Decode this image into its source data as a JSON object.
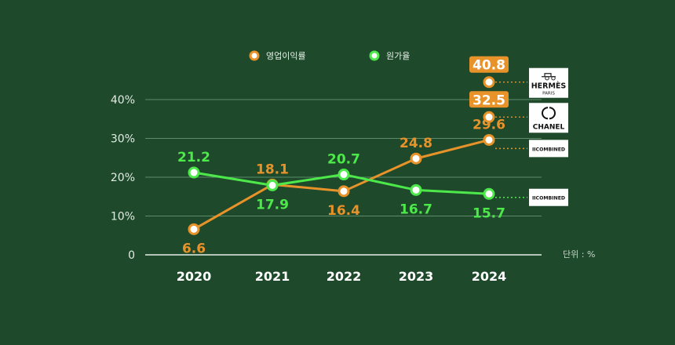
{
  "chart_data": {
    "type": "line",
    "categories": [
      "2020",
      "2021",
      "2022",
      "2023",
      "2024"
    ],
    "series": [
      {
        "name": "영업이익률",
        "color": "#e8922a",
        "values": [
          6.6,
          18.1,
          16.4,
          24.8,
          29.6
        ]
      },
      {
        "name": "원가율",
        "color": "#4de84a",
        "values": [
          21.2,
          17.9,
          20.7,
          16.7,
          15.7
        ]
      }
    ],
    "ylim": [
      0,
      50
    ],
    "yticks": [
      {
        "value": 0,
        "label": "0"
      },
      {
        "value": 10,
        "label": "10%"
      },
      {
        "value": 20,
        "label": "20%"
      },
      {
        "value": 30,
        "label": "30%"
      },
      {
        "value": 40,
        "label": "40%"
      }
    ],
    "unit_note": "단위 : %",
    "legend_position": "top-center",
    "grid": true,
    "comparisons": [
      {
        "value": "40.8",
        "y_value": 44.5,
        "brand_top": "HERMÈS",
        "brand_bottom": "PARIS",
        "logo": "hermes-carriage"
      },
      {
        "value": "32.5",
        "y_value": 35.5,
        "brand_top": "CHANEL",
        "brand_bottom": "",
        "logo": "chanel-cc"
      },
      {
        "value": "",
        "y_value": 27.4,
        "brand_top": "IICOMBINED",
        "brand_bottom": "",
        "logo": ""
      }
    ],
    "cost_reference": {
      "brand": "IICOMBINED",
      "y_value": 14.8
    }
  }
}
